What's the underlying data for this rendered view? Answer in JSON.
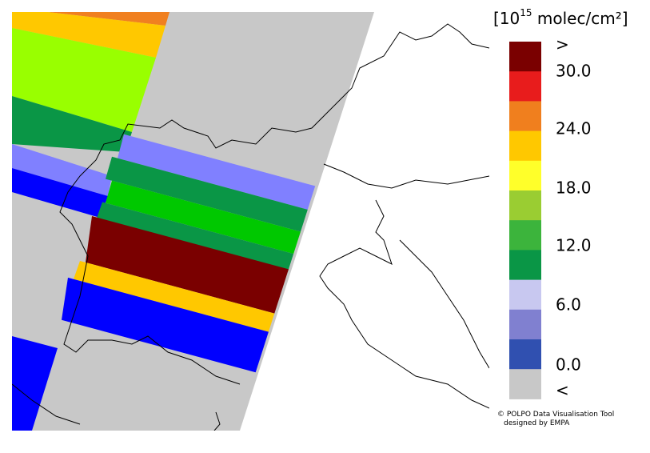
{
  "colorbar": {
    "title": {
      "prefix": "[10",
      "exponent": "15",
      "suffix": " molec/cm²]"
    },
    "colors": [
      "#7a0000",
      "#e81c1c",
      "#f07f1e",
      "#ffc800",
      "#ffff2a",
      "#9acd32",
      "#3cb43c",
      "#0a9646",
      "#c8c8f0",
      "#8080d0",
      "#3050b0",
      "#c8c8c8"
    ],
    "labels": [
      ">",
      "30.0",
      "24.0",
      "18.0",
      "12.0",
      "6.0",
      "0.0",
      "<"
    ]
  },
  "credit": {
    "line1": "© POLPO Data Visualisation Tool",
    "line2": "designed by EMPA"
  }
}
